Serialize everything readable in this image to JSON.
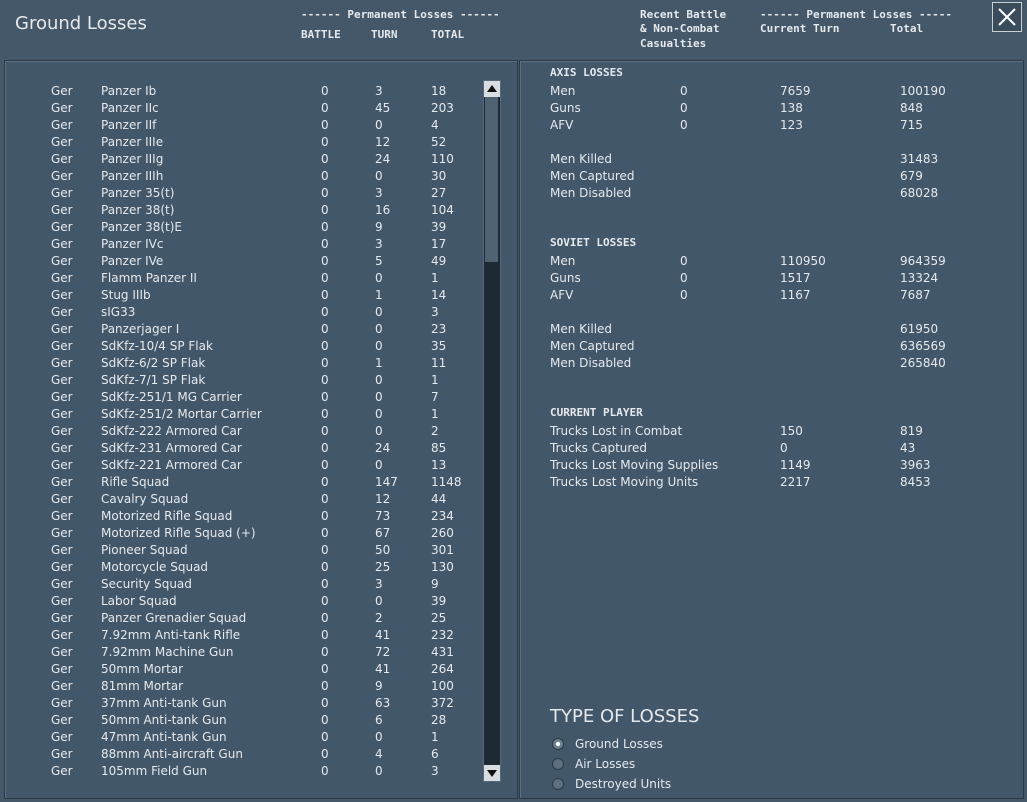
{
  "header": {
    "title": "Ground Losses",
    "left_group": "------ Permanent Losses ------",
    "left_columns": [
      "BATTLE",
      "TURN",
      "TOTAL"
    ],
    "recent": [
      "Recent Battle",
      "& Non-Combat",
      "Casualties"
    ],
    "right_group": "------ Permanent Losses -----",
    "right_columns": [
      "Current Turn",
      "Total"
    ]
  },
  "unit_table": {
    "rows": [
      [
        "Ger",
        "Panzer Ib",
        "0",
        "3",
        "18"
      ],
      [
        "Ger",
        "Panzer IIc",
        "0",
        "45",
        "203"
      ],
      [
        "Ger",
        "Panzer IIf",
        "0",
        "0",
        "4"
      ],
      [
        "Ger",
        "Panzer IIIe",
        "0",
        "12",
        "52"
      ],
      [
        "Ger",
        "Panzer IIIg",
        "0",
        "24",
        "110"
      ],
      [
        "Ger",
        "Panzer IIIh",
        "0",
        "0",
        "30"
      ],
      [
        "Ger",
        "Panzer 35(t)",
        "0",
        "3",
        "27"
      ],
      [
        "Ger",
        "Panzer 38(t)",
        "0",
        "16",
        "104"
      ],
      [
        "Ger",
        "Panzer 38(t)E",
        "0",
        "9",
        "39"
      ],
      [
        "Ger",
        "Panzer IVc",
        "0",
        "3",
        "17"
      ],
      [
        "Ger",
        "Panzer IVe",
        "0",
        "5",
        "49"
      ],
      [
        "Ger",
        "Flamm Panzer II",
        "0",
        "0",
        "1"
      ],
      [
        "Ger",
        "Stug IIIb",
        "0",
        "1",
        "14"
      ],
      [
        "Ger",
        "sIG33",
        "0",
        "0",
        "3"
      ],
      [
        "Ger",
        "Panzerjager I",
        "0",
        "0",
        "23"
      ],
      [
        "Ger",
        "SdKfz-10/4 SP Flak",
        "0",
        "0",
        "35"
      ],
      [
        "Ger",
        "SdKfz-6/2 SP Flak",
        "0",
        "1",
        "11"
      ],
      [
        "Ger",
        "SdKfz-7/1 SP Flak",
        "0",
        "0",
        "1"
      ],
      [
        "Ger",
        "SdKfz-251/1 MG Carrier",
        "0",
        "0",
        "7"
      ],
      [
        "Ger",
        "SdKfz-251/2 Mortar Carrier",
        "0",
        "0",
        "1"
      ],
      [
        "Ger",
        "SdKfz-222 Armored Car",
        "0",
        "0",
        "2"
      ],
      [
        "Ger",
        "SdKfz-231 Armored Car",
        "0",
        "24",
        "85"
      ],
      [
        "Ger",
        "SdKfz-221 Armored Car",
        "0",
        "0",
        "13"
      ],
      [
        "Ger",
        "Rifle Squad",
        "0",
        "147",
        "1148"
      ],
      [
        "Ger",
        "Cavalry Squad",
        "0",
        "12",
        "44"
      ],
      [
        "Ger",
        "Motorized Rifle Squad",
        "0",
        "73",
        "234"
      ],
      [
        "Ger",
        "Motorized Rifle Squad (+)",
        "0",
        "67",
        "260"
      ],
      [
        "Ger",
        "Pioneer Squad",
        "0",
        "50",
        "301"
      ],
      [
        "Ger",
        "Motorcycle Squad",
        "0",
        "25",
        "130"
      ],
      [
        "Ger",
        "Security Squad",
        "0",
        "3",
        "9"
      ],
      [
        "Ger",
        "Labor Squad",
        "0",
        "0",
        "39"
      ],
      [
        "Ger",
        "Panzer Grenadier Squad",
        "0",
        "2",
        "25"
      ],
      [
        "Ger",
        "7.92mm Anti-tank Rifle",
        "0",
        "41",
        "232"
      ],
      [
        "Ger",
        "7.92mm Machine Gun",
        "0",
        "72",
        "431"
      ],
      [
        "Ger",
        "50mm Mortar",
        "0",
        "41",
        "264"
      ],
      [
        "Ger",
        "81mm Mortar",
        "0",
        "9",
        "100"
      ],
      [
        "Ger",
        "37mm Anti-tank Gun",
        "0",
        "63",
        "372"
      ],
      [
        "Ger",
        "50mm Anti-tank Gun",
        "0",
        "6",
        "28"
      ],
      [
        "Ger",
        "47mm Anti-tank Gun",
        "0",
        "0",
        "1"
      ],
      [
        "Ger",
        "88mm Anti-aircraft Gun",
        "0",
        "4",
        "6"
      ],
      [
        "Ger",
        "105mm Field Gun",
        "0",
        "0",
        "3"
      ]
    ]
  },
  "axis": {
    "title": "AXIS LOSSES",
    "rows": [
      [
        "Men",
        "0",
        "7659",
        "100190"
      ],
      [
        "Guns",
        "0",
        "138",
        "848"
      ],
      [
        "AFV",
        "0",
        "123",
        "715"
      ]
    ],
    "details": [
      [
        "Men Killed",
        "31483"
      ],
      [
        "Men Captured",
        "679"
      ],
      [
        "Men Disabled",
        "68028"
      ]
    ]
  },
  "soviet": {
    "title": "SOVIET LOSSES",
    "rows": [
      [
        "Men",
        "0",
        "110950",
        "964359"
      ],
      [
        "Guns",
        "0",
        "1517",
        "13324"
      ],
      [
        "AFV",
        "0",
        "1167",
        "7687"
      ]
    ],
    "details": [
      [
        "Men Killed",
        "61950"
      ],
      [
        "Men Captured",
        "636569"
      ],
      [
        "Men Disabled",
        "265840"
      ]
    ]
  },
  "current_player": {
    "title": "CURRENT PLAYER",
    "rows": [
      [
        "Trucks Lost in Combat",
        "150",
        "819"
      ],
      [
        "Trucks Captured",
        "0",
        "43"
      ],
      [
        "Trucks Lost Moving Supplies",
        "1149",
        "3963"
      ],
      [
        "Trucks Lost Moving Units",
        "2217",
        "8453"
      ]
    ]
  },
  "type_of_losses": {
    "title": "TYPE OF LOSSES",
    "options": [
      "Ground Losses",
      "Air Losses",
      "Destroyed Units"
    ],
    "selected": 0
  }
}
